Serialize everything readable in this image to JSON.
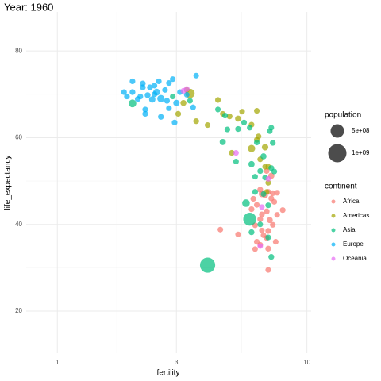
{
  "chart_data": {
    "type": "scatter",
    "title": "Year: 1960",
    "x_label": "fertility",
    "y_label": "life_expectancy",
    "xlog": true,
    "xlim": [
      0.75,
      10.4
    ],
    "ylim": [
      10.3,
      89
    ],
    "xticks": [
      1,
      3,
      10
    ],
    "yticks": [
      20,
      40,
      60,
      80
    ],
    "xminor": [
      1.73,
      5.48
    ],
    "yminor": [
      30,
      50,
      70
    ],
    "grid": true,
    "opacity": 0.7,
    "size_title": "population",
    "size_lim": [
      0,
      1300000000
    ],
    "size_breaks": [
      {
        "value": 500000000,
        "label": "5e+08"
      },
      {
        "value": 1000000000,
        "label": "1e+09"
      }
    ],
    "legend_title": "continent",
    "series": [
      {
        "name": "Africa",
        "color": "#F8766D",
        "x": [
          6.6,
          7.0,
          7.3,
          7.6,
          6.5,
          6.8,
          7.2,
          6.3,
          6.9,
          6.6,
          7.6,
          8.0,
          7.1,
          6.5,
          6.2,
          7.3,
          6.6,
          7.0,
          6.9,
          6.3,
          6.5,
          6.2,
          7.0,
          7.0,
          7.4,
          6.1,
          5.3,
          4.5,
          6.9,
          7.2,
          6.0,
          6.7,
          7.5
        ],
        "y": [
          47.0,
          47.5,
          47.2,
          47.3,
          48.0,
          46.7,
          46.0,
          44.5,
          43.0,
          42.3,
          42.2,
          43.3,
          41.0,
          41.2,
          39.8,
          39.9,
          38.6,
          38.5,
          36.9,
          36.0,
          35.3,
          34.3,
          34.4,
          29.5,
          45.2,
          45.9,
          37.7,
          38.8,
          52.3,
          51.2,
          43.5,
          37.5,
          36.0
        ],
        "size": [
          30000000,
          10000000,
          8000000,
          5000000,
          12000000,
          9000000,
          6000000,
          4000000,
          11000000,
          7000000,
          3000000,
          5000000,
          20000000,
          8000000,
          4000000,
          6000000,
          3000000,
          9000000,
          5000000,
          7000000,
          4000000,
          2000000,
          10000000,
          3000000,
          6000000,
          8000000,
          3000000,
          2000000,
          5000000,
          26000000,
          7000000,
          4000000,
          3000000
        ]
      },
      {
        "name": "Americas",
        "color": "#A3A500",
        "x": [
          3.4,
          3.2,
          3.05,
          3.6,
          4.0,
          4.4,
          4.6,
          4.9,
          5.3,
          6.3,
          6.0,
          6.4,
          6.3,
          6.0,
          6.5,
          6.8,
          7.0,
          7.0,
          6.9,
          5.5,
          6.8,
          5.0,
          3.3
        ],
        "y": [
          70.2,
          68.0,
          65.5,
          63.8,
          62.9,
          68.7,
          65.5,
          64.9,
          64.4,
          66.2,
          63.0,
          60.3,
          59.5,
          57.5,
          55.0,
          53.3,
          53.3,
          49.6,
          47.5,
          66.0,
          57.8,
          56.5,
          71.0
        ],
        "size": [
          186000000,
          18000000,
          7000000,
          10000000,
          3000000,
          5000000,
          4000000,
          8000000,
          20000000,
          2000000,
          6000000,
          3000000,
          4000000,
          72000000,
          5000000,
          3000000,
          2000000,
          4000000,
          3000000,
          2000000,
          38000000,
          10000000,
          4000000
        ]
      },
      {
        "name": "Asia",
        "color": "#00BF7D",
        "x": [
          2.0,
          4.0,
          5.9,
          5.7,
          2.9,
          3.4,
          4.4,
          4.6,
          4.8,
          5.3,
          5.9,
          6.3,
          6.7,
          7.2,
          7.3,
          7.1,
          7.2,
          7.4,
          6.0,
          6.5,
          6.2,
          6.7,
          6.5,
          7.0,
          7.2,
          6.0,
          6.8,
          7.0,
          6.2,
          5.2,
          4.7,
          5.6
        ],
        "y": [
          67.9,
          30.6,
          41.2,
          44.9,
          69.5,
          68.5,
          66.5,
          59.0,
          61.9,
          62.0,
          62.3,
          58.9,
          55.7,
          53.0,
          58.8,
          61.5,
          62.3,
          52.2,
          53.9,
          52.3,
          47.5,
          47.0,
          40.0,
          37.0,
          32.5,
          38.2,
          50.8,
          44.4,
          51.0,
          54.5,
          65.1,
          63.5
        ],
        "size": [
          94000000,
          660000000,
          450000000,
          90000000,
          3000000,
          6000000,
          4000000,
          25000000,
          5000000,
          10000000,
          3000000,
          7000000,
          20000000,
          5000000,
          8000000,
          2000000,
          4000000,
          6000000,
          27000000,
          9000000,
          11000000,
          5000000,
          3000000,
          8000000,
          9000000,
          12000000,
          4000000,
          6000000,
          3000000,
          2000000,
          5000000,
          4000000
        ]
      },
      {
        "name": "Europe",
        "color": "#00B0F6",
        "x": [
          2.0,
          2.2,
          2.35,
          2.45,
          2.55,
          2.6,
          2.7,
          2.4,
          2.3,
          2.15,
          2.8,
          2.9,
          2.1,
          2.5,
          2.75,
          3.0,
          2.25,
          2.25,
          2.8,
          3.1,
          2.0,
          1.85,
          1.9,
          3.3,
          3.6,
          2.6,
          2.95,
          3.5,
          2.2,
          2.45
        ],
        "y": [
          70.5,
          72.5,
          71.6,
          70.0,
          73.0,
          69.0,
          71.0,
          68.8,
          69.8,
          69.5,
          72.6,
          73.5,
          68.9,
          70.5,
          68.5,
          68.0,
          65.5,
          66.5,
          66.8,
          70.5,
          73.0,
          70.5,
          69.5,
          69.9,
          74.3,
          64.8,
          63.5,
          67.0,
          71.6,
          72.0
        ],
        "size": [
          9000000,
          7000000,
          10000000,
          8000000,
          4000000,
          73000000,
          5000000,
          30000000,
          12000000,
          8000000,
          4000000,
          3000000,
          10000000,
          52000000,
          9000000,
          30000000,
          8000000,
          7000000,
          4000000,
          3000000,
          5000000,
          4000000,
          7000000,
          2000000,
          1000000,
          10000000,
          5000000,
          2000000,
          9000000,
          4000000
        ]
      },
      {
        "name": "Oceania",
        "color": "#E76BF3",
        "x": [
          3.3,
          3.2,
          5.2,
          7.0,
          6.6,
          6.5
        ],
        "y": [
          71.2,
          70.8,
          56.5,
          50.5,
          44.0,
          35.0
        ],
        "size": [
          10000000,
          2400000,
          2000000,
          1000000,
          2000000,
          1000000
        ]
      }
    ]
  }
}
